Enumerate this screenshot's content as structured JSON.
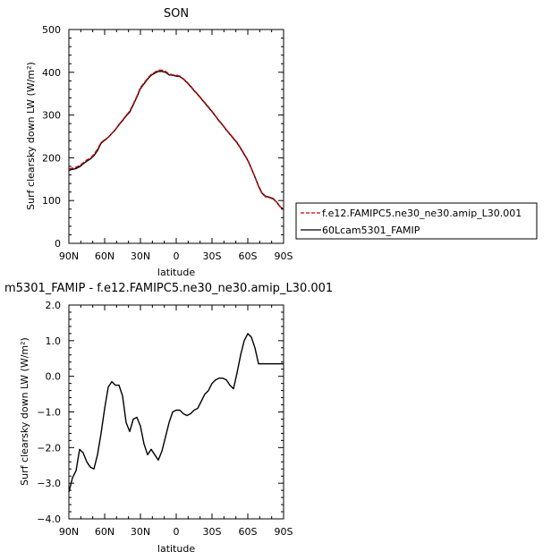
{
  "chart_data": [
    {
      "type": "line",
      "title": "SON",
      "xlabel": "latitude",
      "ylabel": "Surf clearsky down LW (W/m²)",
      "xlim": [
        90,
        -90
      ],
      "ylim": [
        0,
        500
      ],
      "x_ticks": [
        90,
        60,
        30,
        0,
        -30,
        -60,
        -90
      ],
      "x_tick_labels": [
        "90N",
        "60N",
        "30N",
        "0",
        "30S",
        "60S",
        "90S"
      ],
      "y_ticks": [
        0,
        100,
        200,
        300,
        400,
        500
      ],
      "y_tick_labels": [
        "0",
        "100",
        "200",
        "300",
        "400",
        "500"
      ],
      "grid": false,
      "legend": "right",
      "series": [
        {
          "name": "f.e12.FAMIPC5.ne30_ne30.amip_L30.001",
          "color": "#cc0000",
          "style": "dashed",
          "x": [
            90,
            87,
            84,
            81,
            78,
            75,
            72,
            69,
            66,
            63,
            60,
            57,
            54,
            51,
            48,
            45,
            42,
            39,
            36,
            33,
            30,
            27,
            24,
            21,
            18,
            15,
            12,
            9,
            6,
            3,
            0,
            -3,
            -6,
            -9,
            -12,
            -15,
            -18,
            -21,
            -24,
            -27,
            -30,
            -33,
            -36,
            -39,
            -42,
            -45,
            -48,
            -51,
            -54,
            -57,
            -60,
            -63,
            -66,
            -69,
            -72,
            -75,
            -78,
            -81,
            -84,
            -87,
            -90
          ],
          "values": [
            174,
            176,
            178,
            182,
            188,
            195,
            199,
            208,
            220,
            236,
            242,
            248,
            257,
            266,
            278,
            288,
            299,
            309,
            326,
            344,
            364,
            375,
            386,
            395,
            400,
            405,
            405,
            402,
            396,
            394,
            393,
            391,
            385,
            377,
            368,
            358,
            349,
            339,
            329,
            319,
            309,
            298,
            287,
            277,
            266,
            256,
            246,
            236,
            223,
            209,
            195,
            176,
            155,
            133,
            116,
            109,
            107,
            104,
            97,
            86,
            79
          ]
        },
        {
          "name": "60Lcam5301_FAMIP",
          "color": "#000000",
          "style": "solid",
          "x": [
            90,
            87,
            84,
            81,
            78,
            75,
            72,
            69,
            66,
            63,
            60,
            57,
            54,
            51,
            48,
            45,
            42,
            39,
            36,
            33,
            30,
            27,
            24,
            21,
            18,
            15,
            12,
            9,
            6,
            3,
            0,
            -3,
            -6,
            -9,
            -12,
            -15,
            -18,
            -21,
            -24,
            -27,
            -30,
            -33,
            -36,
            -39,
            -42,
            -45,
            -48,
            -51,
            -54,
            -57,
            -60,
            -63,
            -66,
            -69,
            -72,
            -75,
            -78,
            -81,
            -84,
            -87,
            -90
          ],
          "values": [
            171,
            173,
            175,
            179,
            186,
            192,
            197,
            205,
            217,
            234,
            241,
            248,
            257,
            266,
            277,
            287,
            298,
            307,
            324,
            342,
            362,
            373,
            384,
            393,
            398,
            402,
            402,
            400,
            394,
            393,
            391,
            390,
            384,
            376,
            367,
            357,
            348,
            338,
            328,
            318,
            308,
            297,
            286,
            276,
            265,
            255,
            245,
            235,
            222,
            208,
            194,
            175,
            155,
            134,
            117,
            110,
            108,
            105,
            97,
            86,
            79
          ]
        }
      ]
    },
    {
      "type": "line",
      "title": "m5301_FAMIP - f.e12.FAMIPC5.ne30_ne30.amip_L30.001",
      "xlabel": "latitude",
      "ylabel": "Surf clearsky down LW (W/m²)",
      "xlim": [
        90,
        -90
      ],
      "ylim": [
        -4,
        2
      ],
      "x_ticks": [
        90,
        60,
        30,
        0,
        -30,
        -60,
        -90
      ],
      "x_tick_labels": [
        "90N",
        "60N",
        "30N",
        "0",
        "30S",
        "60S",
        "90S"
      ],
      "y_ticks": [
        -4,
        -3,
        -2,
        -1,
        0,
        1,
        2
      ],
      "y_tick_labels": [
        "−4.0",
        "−3.0",
        "−2.0",
        "−1.0",
        "0.0",
        "1.0",
        "2.0"
      ],
      "grid": false,
      "series": [
        {
          "color": "#000000",
          "style": "solid",
          "x": [
            90,
            87,
            84,
            81,
            78,
            75,
            72,
            69,
            66,
            63,
            60,
            57,
            54,
            51,
            48,
            45,
            42,
            39,
            36,
            33,
            30,
            27,
            24,
            21,
            18,
            15,
            12,
            9,
            6,
            3,
            0,
            -3,
            -6,
            -9,
            -12,
            -15,
            -18,
            -21,
            -24,
            -27,
            -30,
            -33,
            -36,
            -39,
            -42,
            -45,
            -48,
            -51,
            -54,
            -57,
            -60,
            -63,
            -66,
            -69,
            -72,
            -75,
            -78,
            -81,
            -84,
            -87,
            -90
          ],
          "values": [
            -3.25,
            -2.85,
            -2.65,
            -2.05,
            -2.15,
            -2.4,
            -2.55,
            -2.6,
            -2.2,
            -1.6,
            -0.9,
            -0.3,
            -0.15,
            -0.25,
            -0.25,
            -0.55,
            -1.3,
            -1.55,
            -1.2,
            -1.15,
            -1.4,
            -1.9,
            -2.2,
            -2.05,
            -2.2,
            -2.35,
            -2.1,
            -1.7,
            -1.3,
            -1.0,
            -0.95,
            -0.95,
            -1.05,
            -1.1,
            -1.05,
            -0.95,
            -0.9,
            -0.7,
            -0.5,
            -0.4,
            -0.2,
            -0.1,
            -0.05,
            -0.05,
            -0.1,
            -0.25,
            -0.35,
            0.1,
            0.6,
            1.0,
            1.2,
            1.1,
            0.8,
            0.35,
            0.35,
            0.35,
            0.35,
            0.35,
            0.35,
            0.35,
            0.35
          ]
        }
      ]
    }
  ]
}
